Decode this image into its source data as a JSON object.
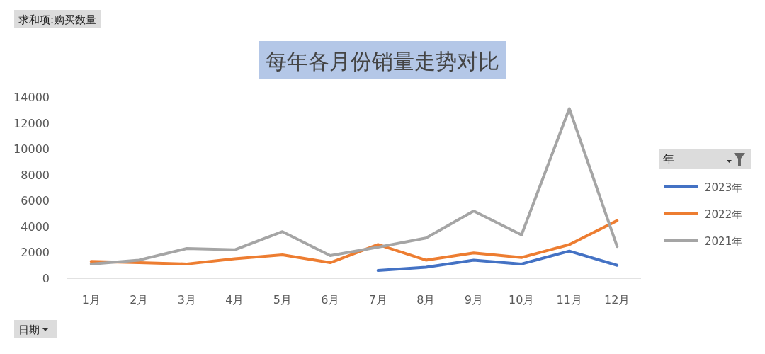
{
  "chart_data": {
    "type": "line",
    "title": "每年各月份销量走势对比",
    "legend_title": "年",
    "legend": "right",
    "annotations": [
      "求和项:购买数量",
      "日期"
    ],
    "categories": [
      "1月",
      "2月",
      "3月",
      "4月",
      "5月",
      "6月",
      "7月",
      "8月",
      "9月",
      "10月",
      "11月",
      "12月"
    ],
    "ylim": [
      0,
      14000
    ],
    "yticks": [
      0,
      2000,
      4000,
      6000,
      8000,
      10000,
      12000,
      14000
    ],
    "series": [
      {
        "name": "2023年",
        "color": "#4472c4",
        "values": [
          null,
          null,
          null,
          null,
          null,
          null,
          600,
          850,
          1400,
          1100,
          2100,
          1000
        ]
      },
      {
        "name": "2022年",
        "color": "#ed7d31",
        "values": [
          1300,
          1200,
          1100,
          1500,
          1800,
          1200,
          2600,
          1400,
          1950,
          1600,
          2600,
          4450
        ]
      },
      {
        "name": "2021年",
        "color": "#a5a5a5",
        "values": [
          1100,
          1400,
          2300,
          2200,
          3600,
          1750,
          2400,
          3100,
          5200,
          3350,
          13100,
          2450
        ]
      }
    ]
  }
}
